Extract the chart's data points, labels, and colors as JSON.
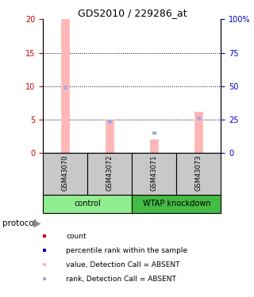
{
  "title": "GDS2010 / 229286_at",
  "samples": [
    "GSM43070",
    "GSM43072",
    "GSM43071",
    "GSM43073"
  ],
  "pink_bar_values": [
    20.0,
    5.0,
    2.0,
    6.2
  ],
  "blue_sq_values": [
    9.8,
    4.7,
    3.0,
    5.2
  ],
  "ylim_left": [
    0,
    20
  ],
  "ylim_right": [
    0,
    100
  ],
  "yticks_left": [
    0,
    5,
    10,
    15,
    20
  ],
  "yticks_right": [
    0,
    25,
    50,
    75,
    100
  ],
  "ytick_labels_right": [
    "0",
    "25",
    "50",
    "75",
    "100%"
  ],
  "bar_width": 0.18,
  "pink_color": "#FFB6B6",
  "blue_sq_color": "#AAAADD",
  "left_tick_color": "#CC0000",
  "right_tick_color": "#0000CC",
  "sample_bg_color": "#C8C8C8",
  "control_color": "#90EE90",
  "wtap_color": "#44BB44",
  "legend_items": [
    {
      "label": "count",
      "color": "#CC0000"
    },
    {
      "label": "percentile rank within the sample",
      "color": "#0000CC"
    },
    {
      "label": "value, Detection Call = ABSENT",
      "color": "#FFB6B6"
    },
    {
      "label": "rank, Detection Call = ABSENT",
      "color": "#AAAADD"
    }
  ],
  "protocol_label": "protocol"
}
